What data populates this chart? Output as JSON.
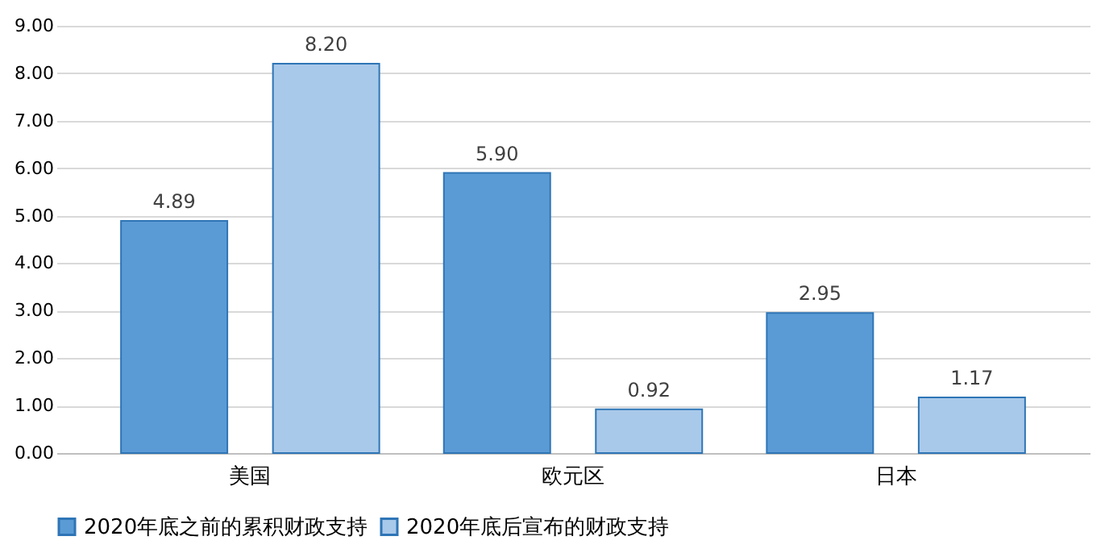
{
  "chart_data": {
    "type": "bar",
    "categories": [
      "美国",
      "欧元区",
      "日本"
    ],
    "series": [
      {
        "name": "2020年底之前的累积财政支持",
        "color": "#5b9bd5",
        "values": [
          4.89,
          5.9,
          2.95
        ],
        "value_labels": [
          "4.89",
          "5.90",
          "2.95"
        ]
      },
      {
        "name": "2020年底后宣布的财政支持",
        "color": "#a9c9ea",
        "values": [
          8.2,
          0.92,
          1.17
        ],
        "value_labels": [
          "8.20",
          "0.92",
          "1.17"
        ]
      }
    ],
    "ylim": [
      0,
      9
    ],
    "yticks": [
      {
        "value": 0,
        "label": "0.00"
      },
      {
        "value": 1,
        "label": "1.00"
      },
      {
        "value": 2,
        "label": "2.00"
      },
      {
        "value": 3,
        "label": "3.00"
      },
      {
        "value": 4,
        "label": "4.00"
      },
      {
        "value": 5,
        "label": "5.00"
      },
      {
        "value": 6,
        "label": "6.00"
      },
      {
        "value": 7,
        "label": "7.00"
      },
      {
        "value": 8,
        "label": "8.00"
      },
      {
        "value": 9,
        "label": "9.00"
      }
    ],
    "grid": "y",
    "legend": "bottom"
  }
}
